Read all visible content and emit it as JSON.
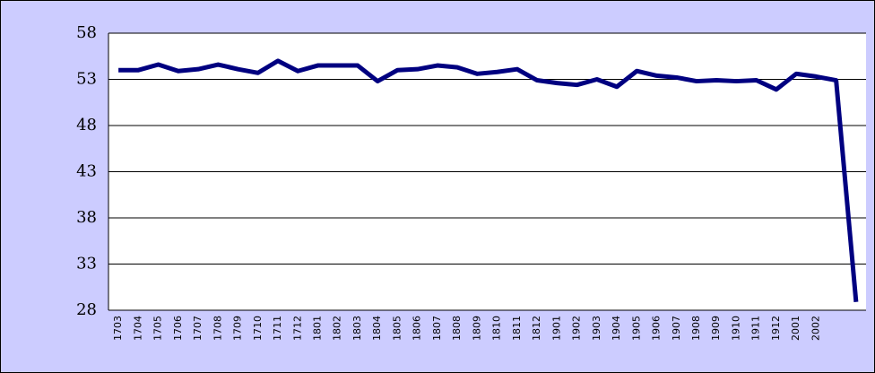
{
  "chart_data": {
    "type": "line",
    "categories": [
      "1703",
      "1704",
      "1705",
      "1706",
      "1707",
      "1708",
      "1709",
      "1710",
      "1711",
      "1712",
      "1801",
      "1802",
      "1803",
      "1804",
      "1805",
      "1806",
      "1807",
      "1808",
      "1809",
      "1810",
      "1811",
      "1812",
      "1901",
      "1902",
      "1903",
      "1904",
      "1905",
      "1906",
      "1907",
      "1908",
      "1909",
      "1910",
      "1911",
      "1912",
      "2001",
      "2002",
      null,
      null
    ],
    "series": [
      {
        "color": "#000080",
        "values": [
          54.0,
          54.0,
          54.6,
          53.9,
          54.1,
          54.6,
          54.1,
          53.7,
          55.0,
          53.9,
          54.5,
          54.5,
          54.5,
          52.8,
          54.0,
          54.1,
          54.5,
          54.3,
          53.6,
          53.8,
          54.1,
          52.9,
          52.6,
          52.4,
          53.0,
          52.2,
          53.9,
          53.4,
          53.2,
          52.8,
          52.9,
          52.8,
          52.9,
          51.9,
          53.6,
          53.3,
          52.9,
          28.9
        ]
      }
    ],
    "ylim": [
      28,
      58
    ],
    "yticks": [
      28,
      33,
      38,
      43,
      48,
      53,
      58
    ],
    "grid": true
  }
}
